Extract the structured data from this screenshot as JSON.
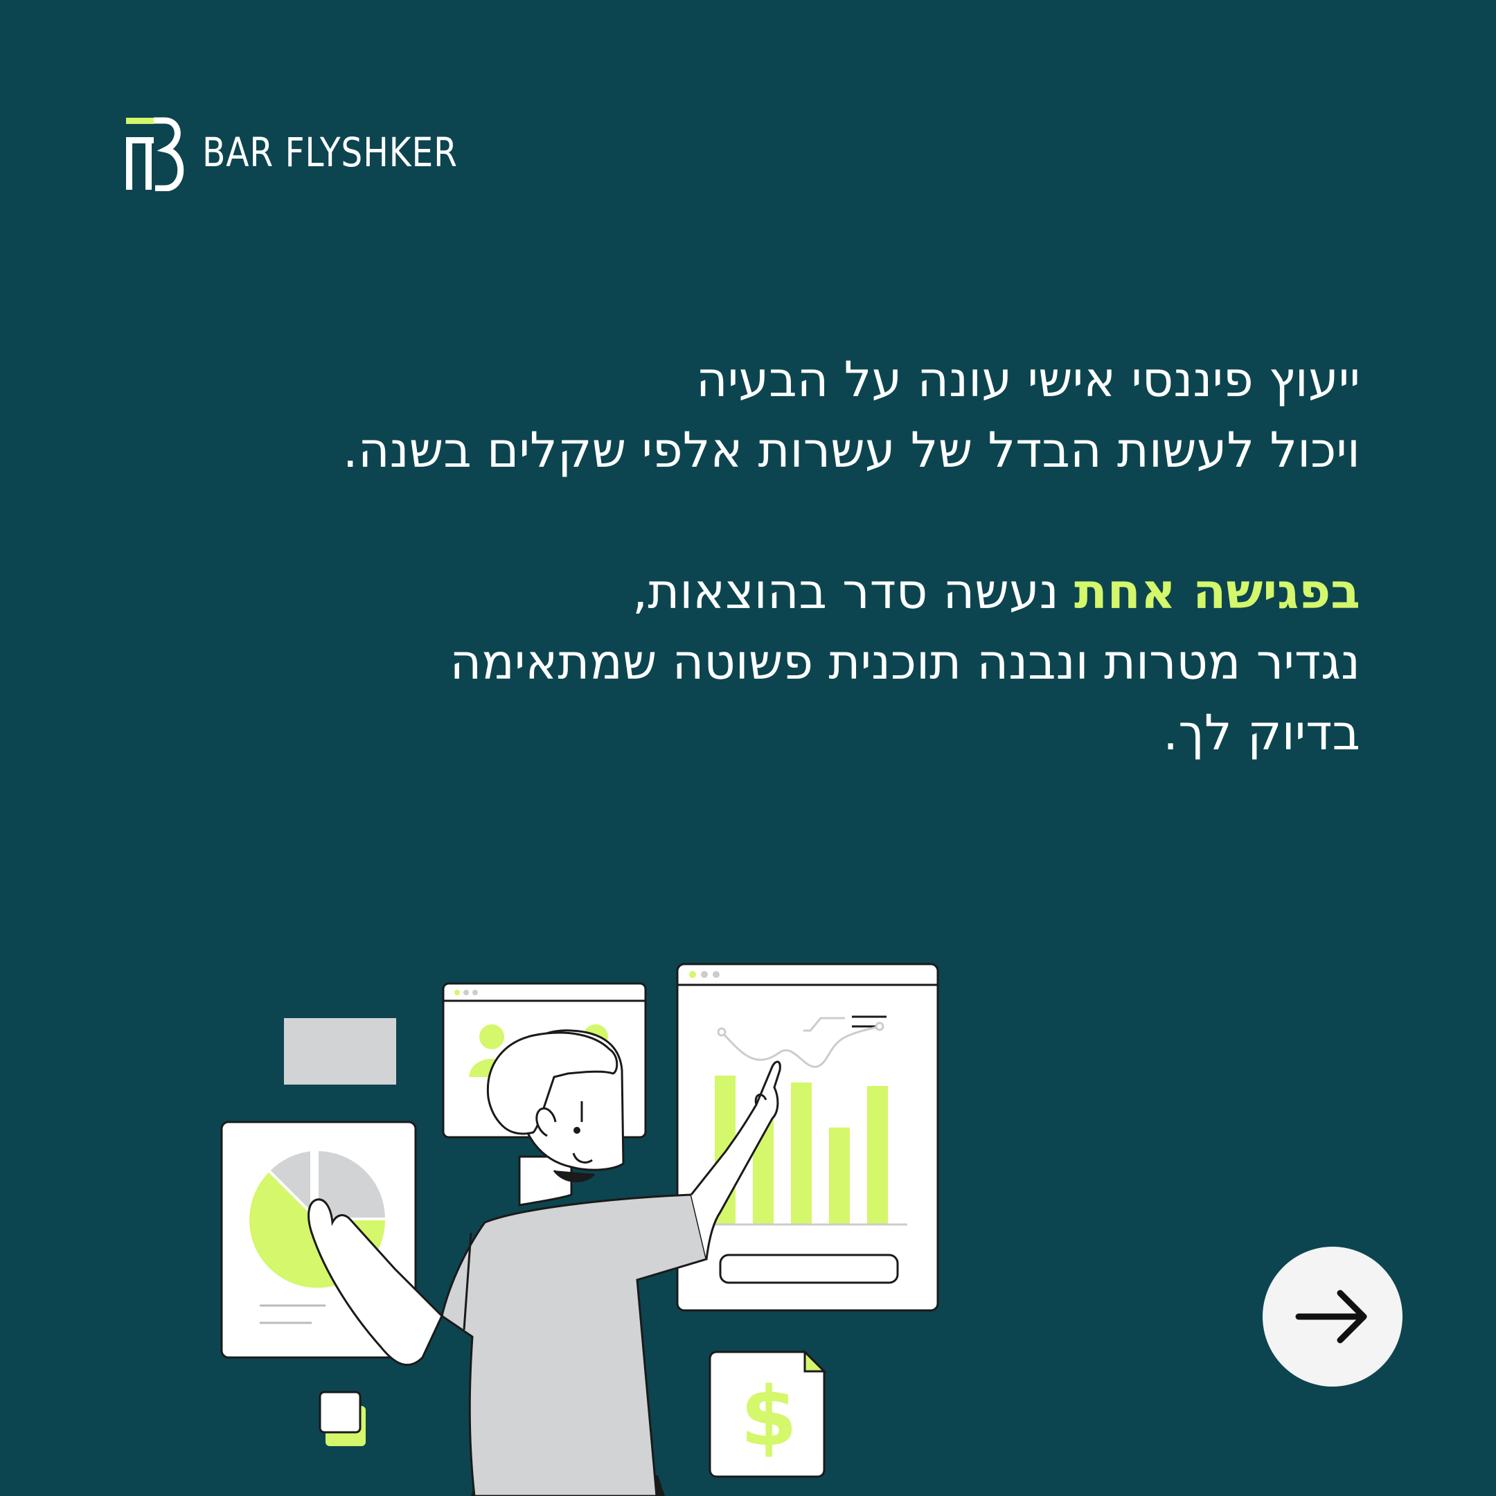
{
  "brand": {
    "logo_icon": "fb-monogram-logo",
    "name": "BAR FLYSHKER"
  },
  "content": {
    "line1": "ייעוץ פיננסי אישי עונה על הבעיה",
    "line2": "ויכול לעשות הבדל של עשרות אלפי שקלים בשנה.",
    "line3_highlight": "בפגישה אחת",
    "line3_rest": " נעשה סדר בהוצאות,",
    "line4": "נגדיר מטרות ונבנה תוכנית פשוטה שמתאימה",
    "line5": "בדיוק לך."
  },
  "illustration": {
    "currency_symbol": "$",
    "description_icons": [
      "pie-chart-card-icon",
      "people-exchange-card-icon",
      "bar-chart-card-icon",
      "dollar-document-icon",
      "man-pointing-figure"
    ]
  },
  "navigation": {
    "next_icon": "arrow-right-icon"
  },
  "colors": {
    "background": "#0c4550",
    "accent": "#d4f76b",
    "text": "#ffffff"
  }
}
